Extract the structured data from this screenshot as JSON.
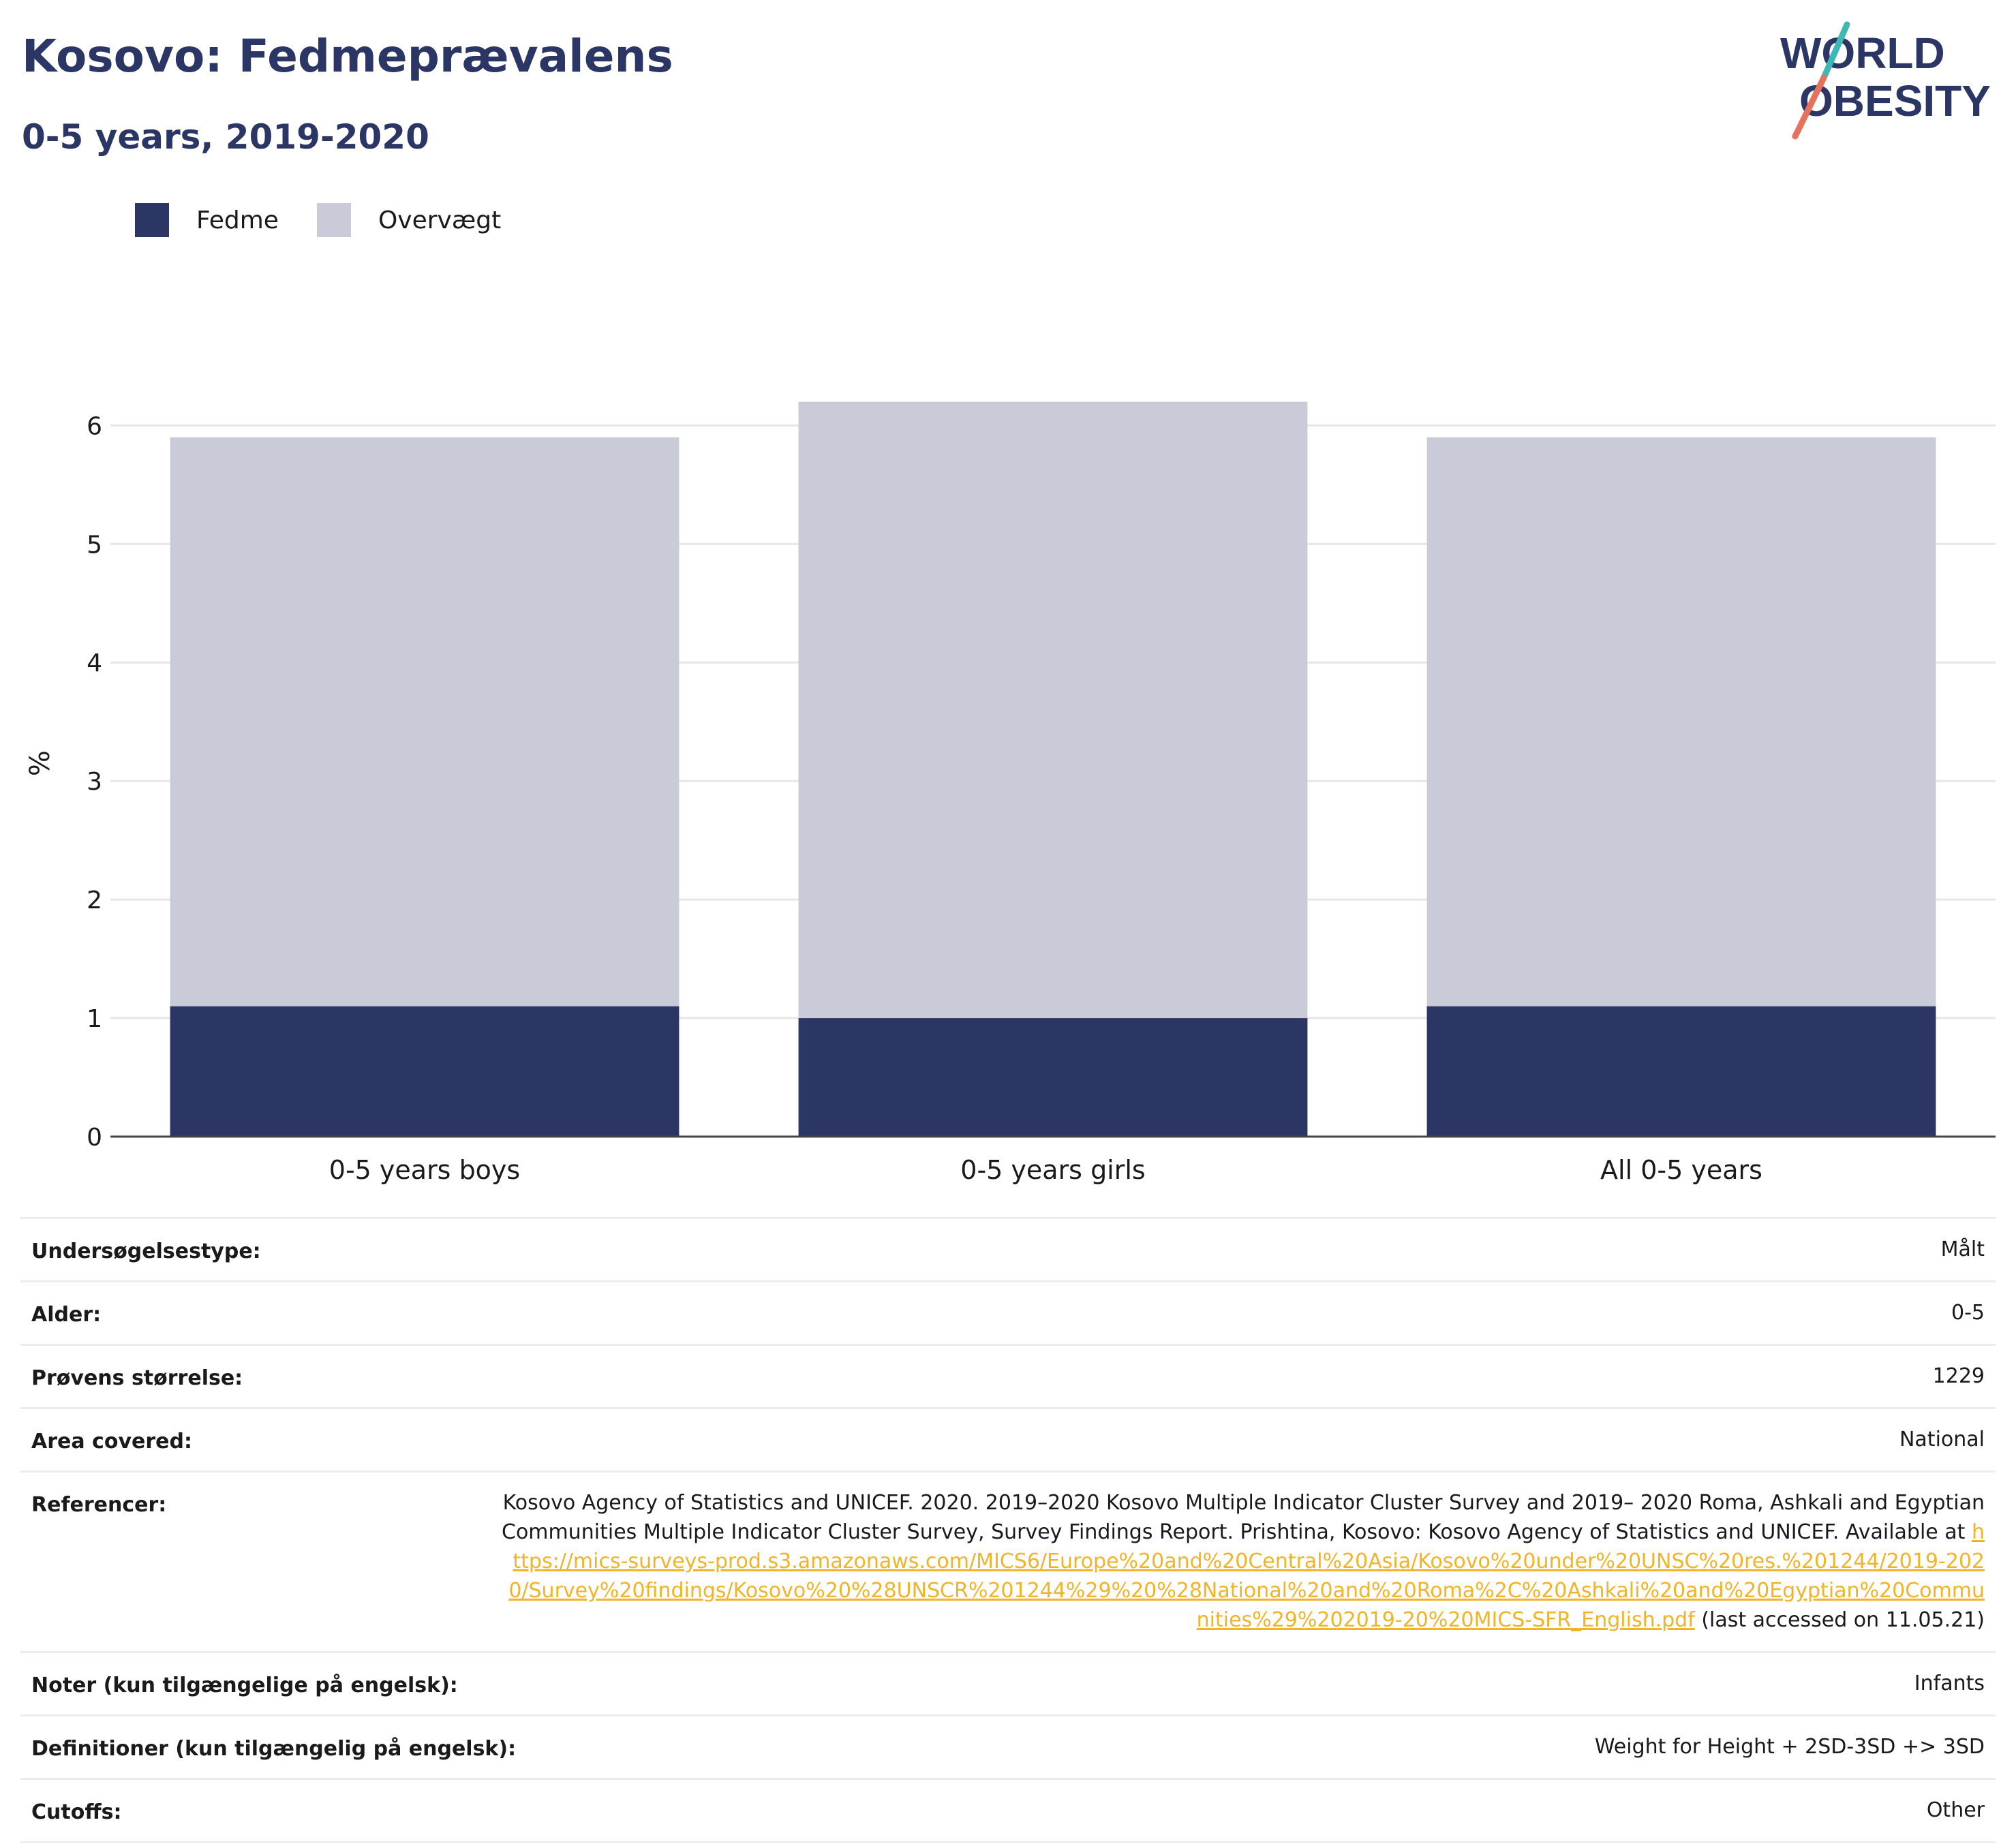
{
  "header": {
    "title": "Kosovo: Fedmeprævalens",
    "subtitle": "0-5 years, 2019-2020"
  },
  "logo": {
    "line1": "WORLD",
    "line2": "OBESITY",
    "colors": {
      "text": "#2b3664",
      "teal": "#3fb8b5",
      "coral": "#e5735c"
    }
  },
  "legend": [
    {
      "label": "Fedme",
      "color": "#2b3664"
    },
    {
      "label": "Overvægt",
      "color": "#c9ccd8"
    }
  ],
  "chart_data": {
    "type": "bar",
    "stacked": true,
    "categories": [
      "0-5 years boys",
      "0-5 years girls",
      "All 0-5 years"
    ],
    "series": [
      {
        "name": "Fedme",
        "color": "#2b3664",
        "values": [
          1.1,
          1.0,
          1.1
        ]
      },
      {
        "name": "Overvægt",
        "color": "#c9ccd8",
        "values": [
          4.8,
          5.2,
          4.8
        ]
      }
    ],
    "ylabel": "%",
    "ylim": [
      0,
      6.6
    ],
    "yticks": [
      0,
      1,
      2,
      3,
      4,
      5,
      6
    ],
    "grid": true,
    "legend_position": "top-left"
  },
  "info": {
    "rows": [
      {
        "label": "Undersøgelsestype:",
        "value": "Målt"
      },
      {
        "label": "Alder:",
        "value": "0-5"
      },
      {
        "label": "Prøvens størrelse:",
        "value": "1229"
      },
      {
        "label": "Area covered:",
        "value": "National"
      },
      {
        "label": "Referencer:",
        "value": "Kosovo Agency of Statistics and UNICEF. 2020. 2019–2020 Kosovo Multiple Indicator Cluster Survey and 2019– 2020 Roma, Ashkali and Egyptian Communities Multiple Indicator Cluster Survey, Survey Findings Report. Prishtina, Kosovo: Kosovo Agency of Statistics and UNICEF. Available at ",
        "link": "https://mics-surveys-prod.s3.amazonaws.com/MICS6/Europe%20and%20Central%20Asia/Kosovo%20under%20UNSC%20res.%201244/2019-2020/Survey%20findings/Kosovo%20%28UNSCR%201244%29%20%28National%20and%20Roma%2C%20Ashkali%20and%20Egyptian%20Communities%29%202019-20%20MICS-SFR_English.pdf",
        "suffix": " (last accessed on 11.05.21)"
      },
      {
        "label": "Noter (kun tilgængelige på engelsk):",
        "value": "Infants"
      },
      {
        "label": "Definitioner (kun tilgængelig på engelsk):",
        "value": "Weight for Height + 2SD-3SD +> 3SD"
      },
      {
        "label": "Cutoffs:",
        "value": "Other"
      }
    ]
  }
}
